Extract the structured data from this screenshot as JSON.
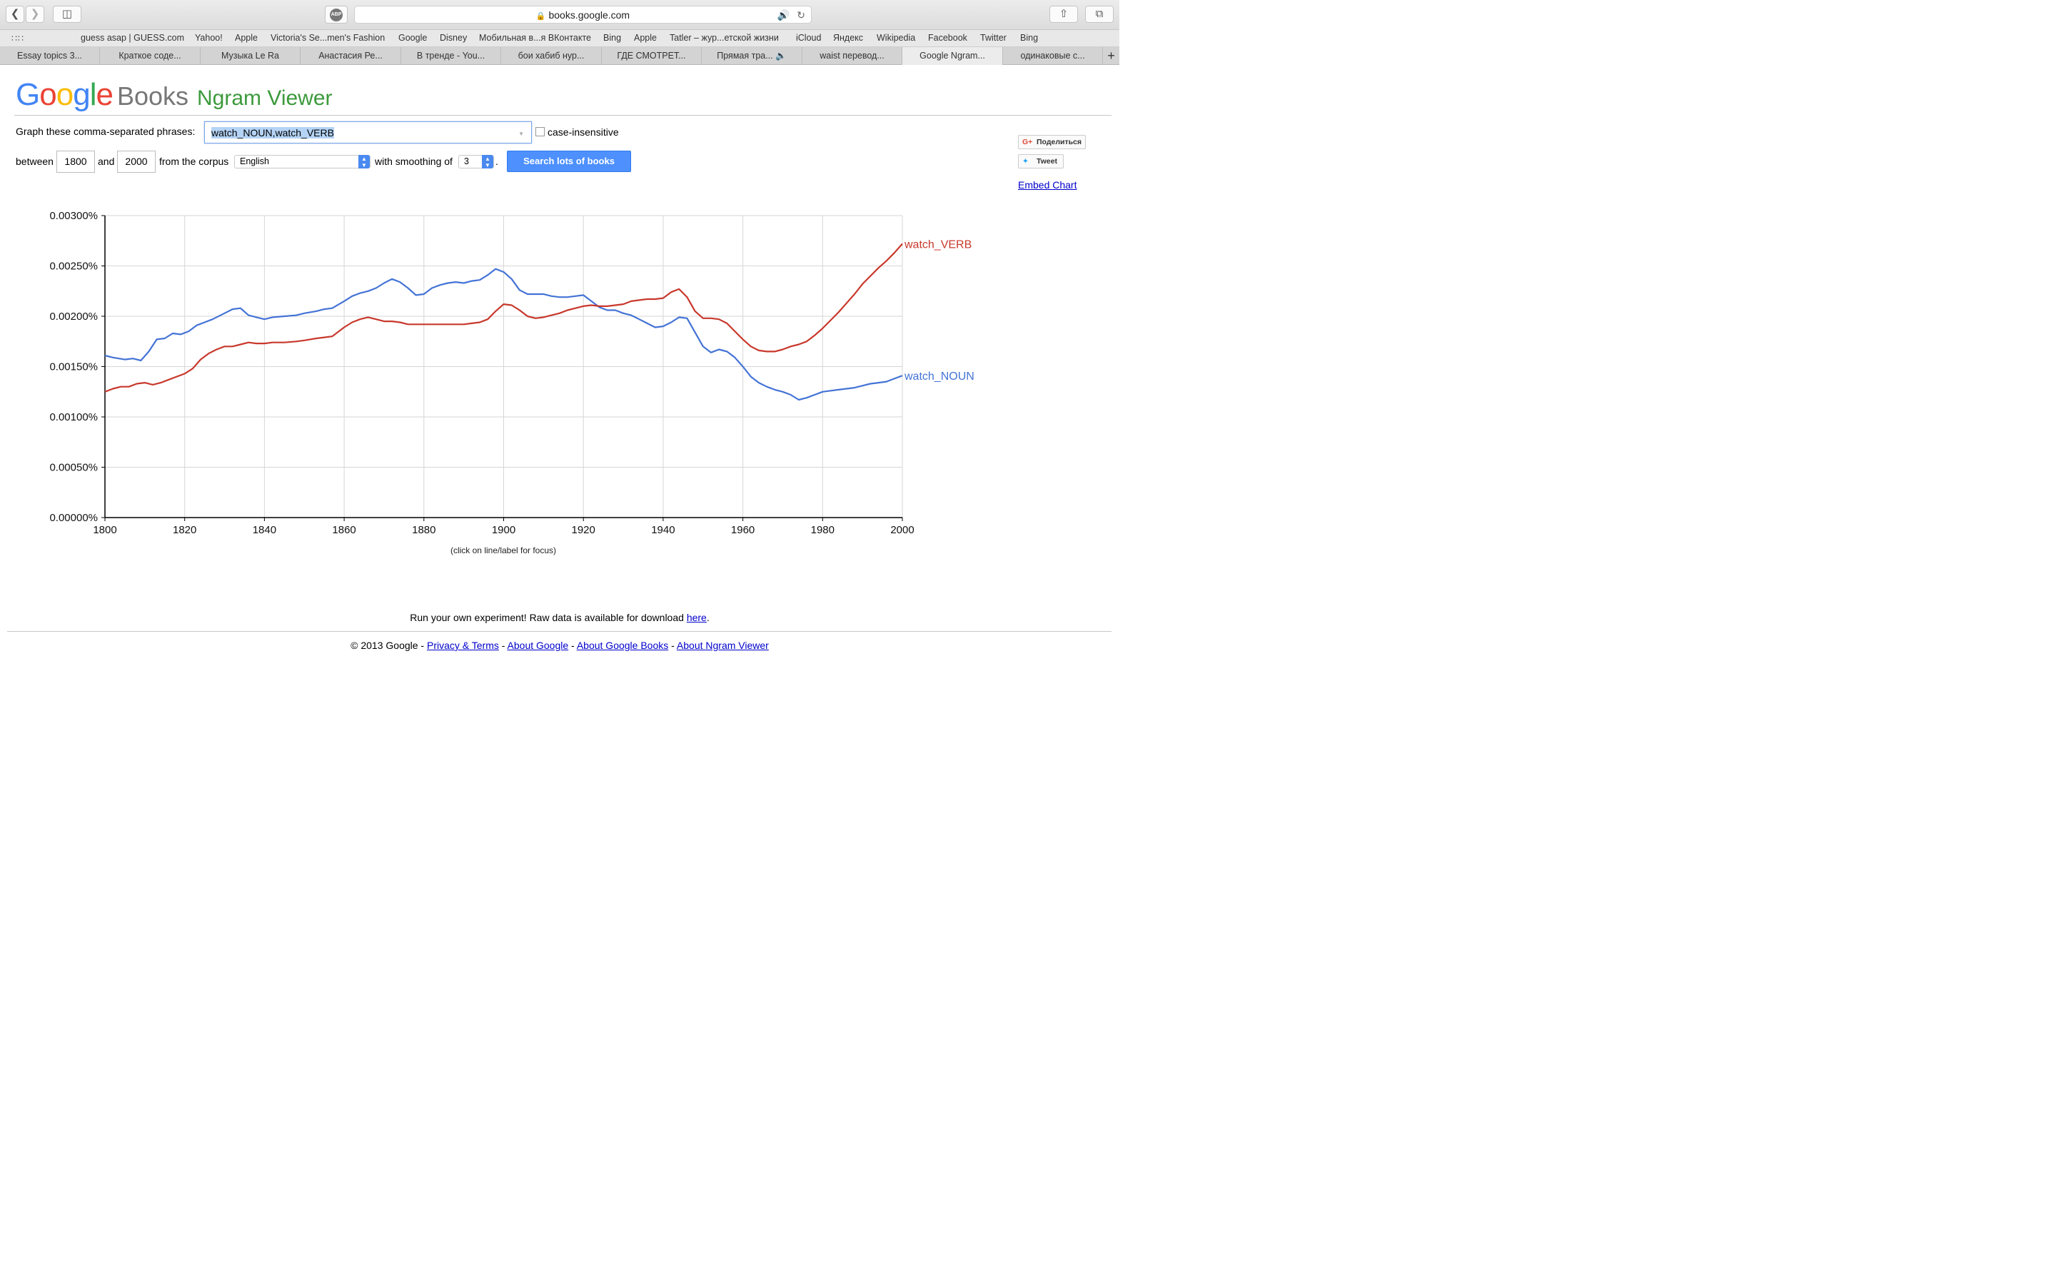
{
  "browser": {
    "url": "books.google.com",
    "bookmarks": [
      "guess asap | GUESS.com",
      "Yahoo!",
      "Apple",
      "Victoria's Se...men's Fashion",
      "Google",
      "Disney",
      "Мобильная в...я ВКонтакте",
      "Bing",
      "Apple",
      "Tatler – жур...етской жизни",
      "iCloud",
      "Яндекс",
      "Wikipedia",
      "Facebook",
      "Twitter",
      "Bing"
    ],
    "tabs": [
      "Essay topics 3...",
      "Краткое соде...",
      "Музыка Le Ra",
      "Анастасия Ре...",
      "В тренде - You...",
      "бои хабиб нур...",
      "ГДЕ СМОТРЕТ...",
      "Прямая тра...",
      "waist перевод...",
      "Google Ngram...",
      "одинаковые с..."
    ],
    "active_tab": 9
  },
  "logo": {
    "books": "Books",
    "ngram": "Ngram Viewer"
  },
  "form": {
    "graph_label": "Graph these comma-separated phrases:",
    "phrases": "watch_NOUN,watch_VERB",
    "case_insensitive_label": "case-insensitive",
    "between_label": "between",
    "start_year": "1800",
    "and_label": "and",
    "end_year": "2000",
    "corpus_label": "from the corpus",
    "corpus": "English",
    "smoothing_label": "with smoothing of",
    "smoothing": "3",
    "period": ".",
    "search_button": "Search lots of books"
  },
  "share": {
    "gplus": "Поделиться",
    "tweet": "Tweet",
    "embed": "Embed Chart"
  },
  "chart_data": {
    "type": "line",
    "title": "",
    "xlabel": "",
    "ylabel": "",
    "note": "(click on line/label for focus)",
    "xlim": [
      1800,
      2000
    ],
    "ylim": [
      0,
      0.003
    ],
    "x_ticks": [
      "1800",
      "1820",
      "1840",
      "1860",
      "1880",
      "1900",
      "1920",
      "1940",
      "1960",
      "1980",
      "2000"
    ],
    "y_ticks": [
      "0.00000%",
      "0.00050%",
      "0.00100%",
      "0.00150%",
      "0.00200%",
      "0.00250%",
      "0.00300%"
    ],
    "grid": true,
    "legend": "labels at line ends (right)",
    "series": [
      {
        "name": "watch_NOUN",
        "color": "#4473d6",
        "x": [
          1800,
          1802,
          1805,
          1807,
          1809,
          1811,
          1813,
          1815,
          1817,
          1819,
          1821,
          1823,
          1825,
          1827,
          1830,
          1832,
          1834,
          1836,
          1838,
          1840,
          1842,
          1845,
          1848,
          1850,
          1853,
          1855,
          1857,
          1860,
          1862,
          1864,
          1866,
          1868,
          1870,
          1872,
          1874,
          1876,
          1878,
          1880,
          1882,
          1884,
          1886,
          1888,
          1890,
          1892,
          1894,
          1896,
          1898,
          1900,
          1902,
          1904,
          1906,
          1908,
          1910,
          1912,
          1914,
          1916,
          1918,
          1920,
          1922,
          1924,
          1926,
          1928,
          1930,
          1932,
          1934,
          1936,
          1938,
          1940,
          1942,
          1944,
          1946,
          1948,
          1950,
          1952,
          1954,
          1956,
          1958,
          1960,
          1962,
          1964,
          1966,
          1968,
          1970,
          1972,
          1974,
          1976,
          1978,
          1980,
          1982,
          1984,
          1986,
          1988,
          1990,
          1992,
          1994,
          1996,
          1998,
          2000
        ],
        "y": [
          0.00161,
          0.00159,
          0.00157,
          0.00158,
          0.00156,
          0.00165,
          0.00177,
          0.00178,
          0.00183,
          0.00182,
          0.00185,
          0.00191,
          0.00194,
          0.00197,
          0.00203,
          0.00207,
          0.00208,
          0.00201,
          0.00199,
          0.00197,
          0.00199,
          0.002,
          0.00201,
          0.00203,
          0.00205,
          0.00207,
          0.00208,
          0.00215,
          0.0022,
          0.00223,
          0.00225,
          0.00228,
          0.00233,
          0.00237,
          0.00234,
          0.00228,
          0.00221,
          0.00222,
          0.00228,
          0.00231,
          0.00233,
          0.00234,
          0.00233,
          0.00235,
          0.00236,
          0.00241,
          0.00247,
          0.00244,
          0.00237,
          0.00226,
          0.00222,
          0.00222,
          0.00222,
          0.0022,
          0.00219,
          0.00219,
          0.0022,
          0.00221,
          0.00215,
          0.00209,
          0.00206,
          0.00206,
          0.00203,
          0.00201,
          0.00197,
          0.00193,
          0.00189,
          0.0019,
          0.00194,
          0.00199,
          0.00198,
          0.00184,
          0.0017,
          0.00164,
          0.00167,
          0.00165,
          0.00159,
          0.0015,
          0.0014,
          0.00134,
          0.0013,
          0.00127,
          0.00125,
          0.00122,
          0.00117,
          0.00119,
          0.00122,
          0.00125,
          0.00126,
          0.00127,
          0.00128,
          0.00129,
          0.00131,
          0.00133,
          0.00134,
          0.00135,
          0.00138,
          0.00141
        ]
      },
      {
        "name": "watch_VERB",
        "color": "#c8382c",
        "x": [
          1800,
          1802,
          1804,
          1806,
          1808,
          1810,
          1812,
          1814,
          1816,
          1818,
          1820,
          1822,
          1824,
          1826,
          1828,
          1830,
          1832,
          1834,
          1836,
          1838,
          1840,
          1842,
          1845,
          1848,
          1850,
          1853,
          1855,
          1857,
          1860,
          1862,
          1864,
          1866,
          1868,
          1870,
          1872,
          1874,
          1876,
          1878,
          1880,
          1882,
          1884,
          1886,
          1888,
          1890,
          1892,
          1894,
          1896,
          1898,
          1900,
          1902,
          1904,
          1906,
          1908,
          1910,
          1912,
          1914,
          1916,
          1918,
          1920,
          1922,
          1924,
          1926,
          1928,
          1930,
          1932,
          1934,
          1936,
          1938,
          1940,
          1942,
          1944,
          1946,
          1948,
          1950,
          1952,
          1954,
          1956,
          1958,
          1960,
          1962,
          1964,
          1966,
          1968,
          1970,
          1972,
          1974,
          1976,
          1978,
          1980,
          1982,
          1984,
          1986,
          1988,
          1990,
          1992,
          1994,
          1996,
          1998,
          2000
        ],
        "y": [
          0.00125,
          0.00128,
          0.0013,
          0.0013,
          0.00133,
          0.00134,
          0.00132,
          0.00134,
          0.00137,
          0.0014,
          0.00143,
          0.00148,
          0.00157,
          0.00163,
          0.00167,
          0.0017,
          0.0017,
          0.00172,
          0.00174,
          0.00173,
          0.00173,
          0.00174,
          0.00174,
          0.00175,
          0.00176,
          0.00178,
          0.00179,
          0.0018,
          0.00189,
          0.00194,
          0.00197,
          0.00199,
          0.00197,
          0.00195,
          0.00195,
          0.00194,
          0.00192,
          0.00192,
          0.00192,
          0.00192,
          0.00192,
          0.00192,
          0.00192,
          0.00192,
          0.00193,
          0.00194,
          0.00197,
          0.00205,
          0.00212,
          0.00211,
          0.00206,
          0.002,
          0.00198,
          0.00199,
          0.00201,
          0.00203,
          0.00206,
          0.00208,
          0.0021,
          0.00211,
          0.0021,
          0.0021,
          0.00211,
          0.00212,
          0.00215,
          0.00216,
          0.00217,
          0.00217,
          0.00218,
          0.00224,
          0.00227,
          0.00219,
          0.00205,
          0.00198,
          0.00198,
          0.00197,
          0.00193,
          0.00185,
          0.00177,
          0.0017,
          0.00166,
          0.00165,
          0.00165,
          0.00167,
          0.0017,
          0.00172,
          0.00175,
          0.00181,
          0.00188,
          0.00196,
          0.00204,
          0.00213,
          0.00222,
          0.00232,
          0.0024,
          0.00248,
          0.00255,
          0.00263,
          0.00272
        ]
      }
    ]
  },
  "footer": {
    "run_text": "Run your own experiment! Raw data is available for download ",
    "here": "here",
    "run_end": ".",
    "copyright": "© 2013 Google - ",
    "privacy": "Privacy & Terms",
    "sep1": " - ",
    "about_google": "About Google",
    "sep2": " - ",
    "about_books": "About Google Books",
    "sep3": " - ",
    "about_ngram": "About Ngram Viewer"
  }
}
